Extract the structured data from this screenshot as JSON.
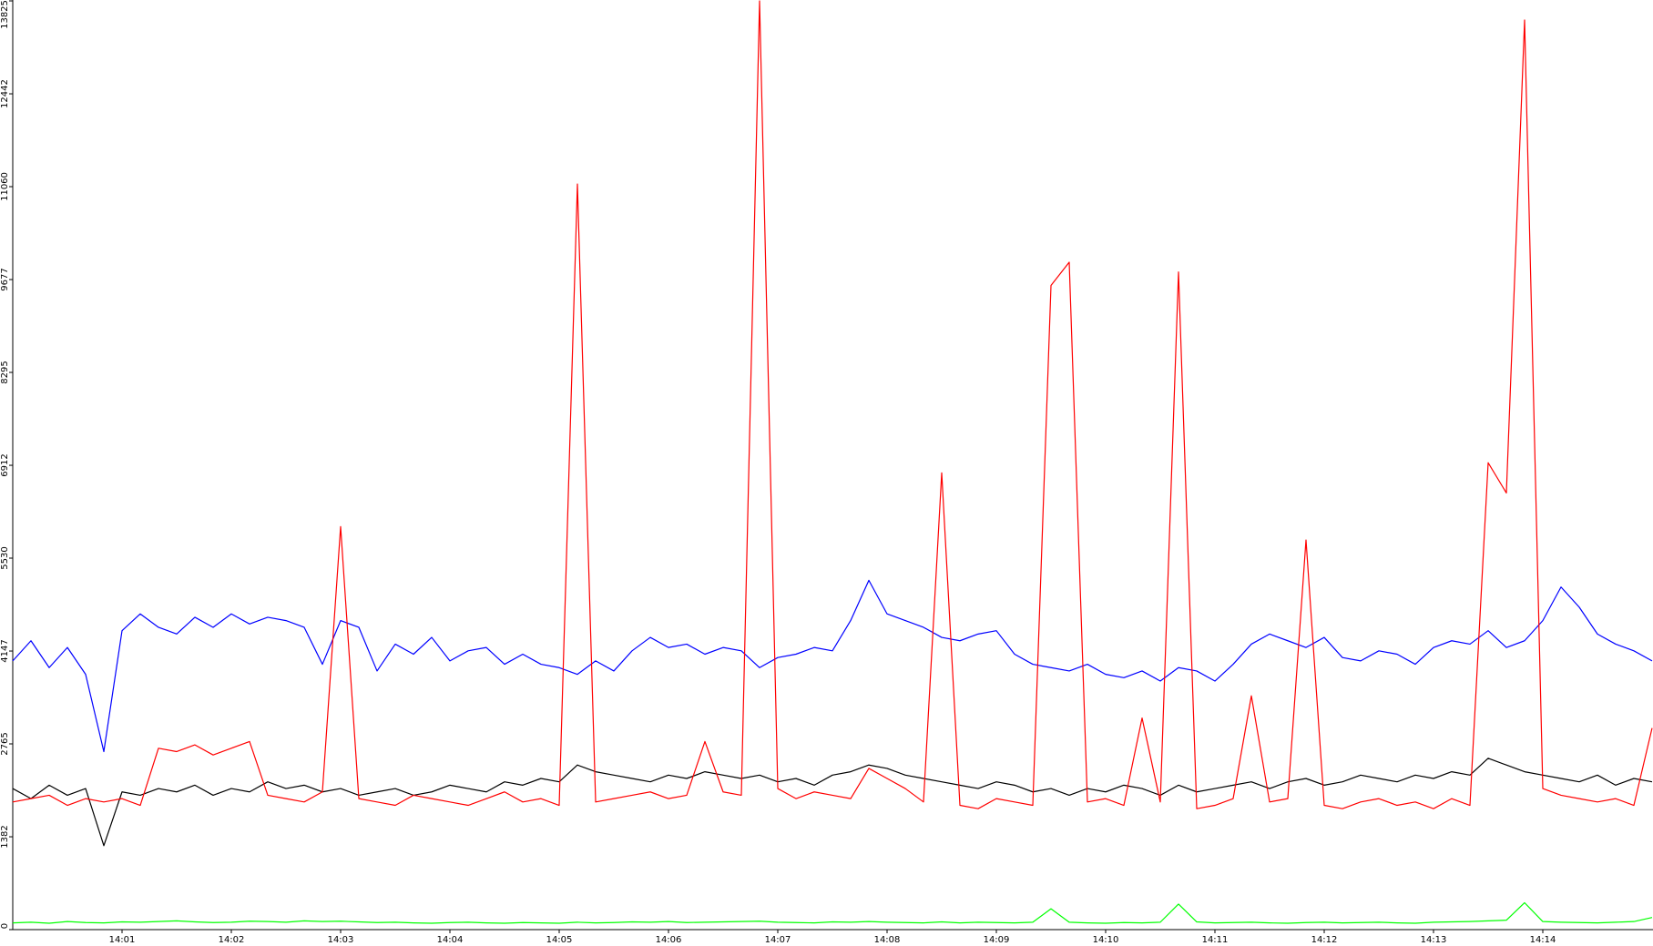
{
  "chart_data": {
    "type": "line",
    "categories": [
      null,
      null,
      null,
      null,
      null,
      null,
      "14:01",
      null,
      null,
      null,
      null,
      null,
      "14:02",
      null,
      null,
      null,
      null,
      null,
      "14:03",
      null,
      null,
      null,
      null,
      null,
      "14:04",
      null,
      null,
      null,
      null,
      null,
      "14:05",
      null,
      null,
      null,
      null,
      null,
      "14:06",
      null,
      null,
      null,
      null,
      null,
      "14:07",
      null,
      null,
      null,
      null,
      null,
      "14:08",
      null,
      null,
      null,
      null,
      null,
      "14:09",
      null,
      null,
      null,
      null,
      null,
      "14:10",
      null,
      null,
      null,
      null,
      null,
      "14:11",
      null,
      null,
      null,
      null,
      null,
      "14:12",
      null,
      null,
      null,
      null,
      null,
      "14:13",
      null,
      null,
      null,
      null,
      null,
      "14:14",
      null,
      null,
      null,
      null,
      null,
      null
    ],
    "series": [
      {
        "color": "#0000ff",
        "values": [
          4000,
          4300,
          3900,
          4200,
          3800,
          2650,
          4450,
          4700,
          4500,
          4400,
          4650,
          4500,
          4700,
          4550,
          4650,
          4600,
          4500,
          3950,
          4600,
          4500,
          3850,
          4250,
          4100,
          4350,
          4000,
          4150,
          4200,
          3950,
          4100,
          3950,
          3900,
          3800,
          4000,
          3850,
          4150,
          4350,
          4200,
          4250,
          4100,
          4200,
          4150,
          3900,
          4050,
          4100,
          4200,
          4150,
          4600,
          5200,
          4700,
          4600,
          4500,
          4350,
          4300,
          4400,
          4450,
          4100,
          3950,
          3900,
          3850,
          3950,
          3800,
          3750,
          3850,
          3700,
          3900,
          3850,
          3700,
          3950,
          4250,
          4400,
          4300,
          4200,
          4350,
          4050,
          4000,
          4150,
          4100,
          3950,
          4200,
          4300,
          4250,
          4450,
          4200,
          4300,
          4600,
          5100,
          4800,
          4400,
          4250,
          4150,
          4000
        ]
      },
      {
        "color": "#000000",
        "values": [
          2100,
          1950,
          2150,
          2000,
          2100,
          1250,
          2050,
          2000,
          2100,
          2050,
          2150,
          2000,
          2100,
          2050,
          2200,
          2100,
          2150,
          2050,
          2100,
          2000,
          2050,
          2100,
          2000,
          2050,
          2150,
          2100,
          2050,
          2200,
          2150,
          2250,
          2200,
          2450,
          2350,
          2300,
          2250,
          2200,
          2300,
          2250,
          2350,
          2300,
          2250,
          2300,
          2200,
          2250,
          2150,
          2300,
          2350,
          2450,
          2400,
          2300,
          2250,
          2200,
          2150,
          2100,
          2200,
          2150,
          2050,
          2100,
          2000,
          2100,
          2050,
          2150,
          2100,
          2000,
          2150,
          2050,
          2100,
          2150,
          2200,
          2100,
          2200,
          2250,
          2150,
          2200,
          2300,
          2250,
          2200,
          2300,
          2250,
          2350,
          2300,
          2550,
          2450,
          2350,
          2300,
          2250,
          2200,
          2300,
          2150,
          2250,
          2200
        ]
      },
      {
        "color": "#ff0000",
        "values": [
          1900,
          1950,
          2000,
          1850,
          1950,
          1900,
          1950,
          1850,
          2700,
          2650,
          2750,
          2600,
          2700,
          2800,
          2000,
          1950,
          1900,
          2050,
          6000,
          1950,
          1900,
          1850,
          2000,
          1950,
          1900,
          1850,
          1950,
          2050,
          1900,
          1950,
          1850,
          11100,
          1900,
          1950,
          2000,
          2050,
          1950,
          2000,
          2800,
          2050,
          2000,
          13825,
          2100,
          1950,
          2050,
          2000,
          1950,
          2400,
          2250,
          2100,
          1900,
          6800,
          1850,
          1800,
          1950,
          1900,
          1850,
          9590,
          9935,
          1900,
          1950,
          1850,
          3150,
          1900,
          9790,
          1800,
          1850,
          1950,
          3480,
          1900,
          1950,
          5800,
          1850,
          1800,
          1900,
          1950,
          1850,
          1900,
          1800,
          1950,
          1850,
          6950,
          6500,
          13540,
          2100,
          2000,
          1950,
          1900,
          1950,
          1850,
          3000
        ]
      },
      {
        "color": "#00ff00",
        "values": [
          100,
          110,
          95,
          120,
          105,
          100,
          115,
          110,
          120,
          130,
          115,
          105,
          110,
          125,
          120,
          110,
          130,
          120,
          125,
          115,
          105,
          110,
          100,
          95,
          105,
          110,
          100,
          95,
          105,
          100,
          95,
          110,
          100,
          105,
          115,
          110,
          120,
          105,
          110,
          115,
          120,
          125,
          110,
          105,
          100,
          115,
          110,
          120,
          110,
          105,
          100,
          115,
          100,
          110,
          105,
          100,
          110,
          310,
          110,
          100,
          95,
          105,
          100,
          110,
          380,
          115,
          100,
          105,
          110,
          100,
          95,
          105,
          110,
          100,
          105,
          110,
          100,
          95,
          110,
          115,
          120,
          130,
          140,
          400,
          120,
          110,
          105,
          100,
          110,
          120,
          180
        ]
      }
    ],
    "ylim": [
      0,
      13825
    ],
    "yticks": [
      0,
      1382,
      2765,
      4147,
      5530,
      6912,
      8295,
      9677,
      11060,
      12442,
      13825
    ]
  }
}
